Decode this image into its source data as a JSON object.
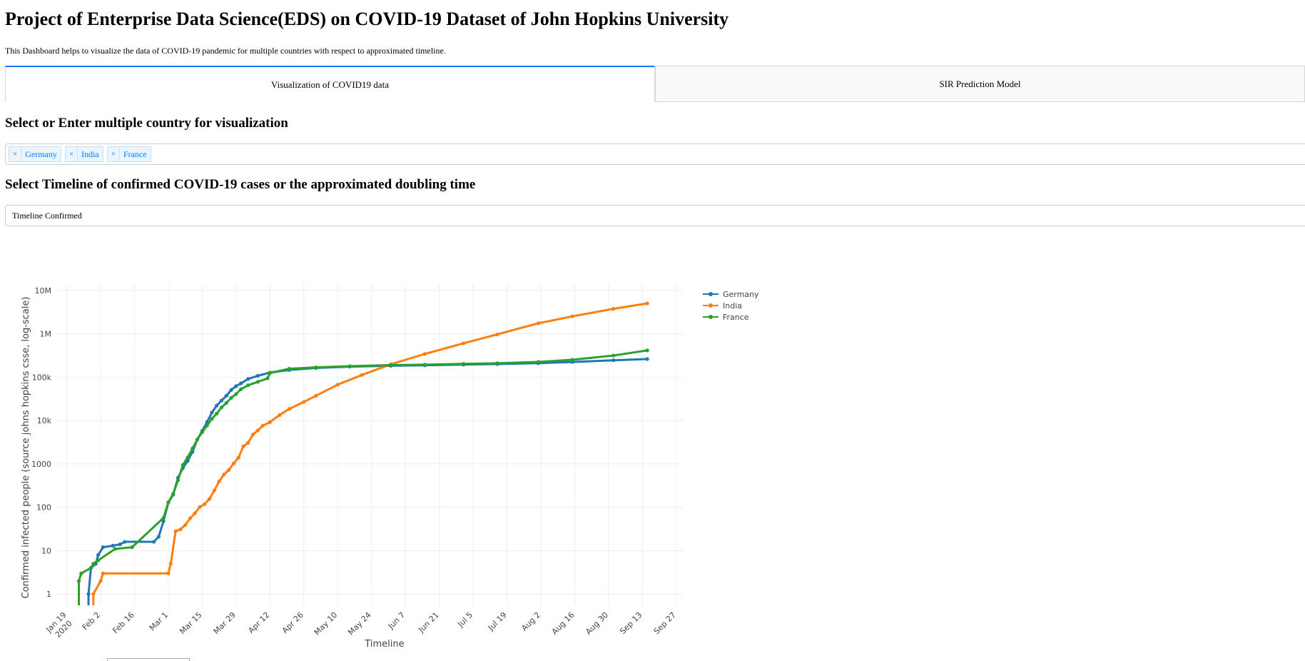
{
  "header": {
    "title": "Project of Enterprise Data Science(EDS) on COVID-19 Dataset of John Hopkins University",
    "intro": "This Dashboard helps to visualize the data of COVID-19 pandemic for multiple countries with respect to approximated timeline."
  },
  "tabs": [
    {
      "label": "Visualization of COVID19 data",
      "active": true
    },
    {
      "label": "SIR Prediction Model",
      "active": false
    }
  ],
  "country_select": {
    "heading": "Select or Enter multiple country for visualization",
    "remove_glyph": "×",
    "selected": [
      "Germany",
      "India",
      "France"
    ]
  },
  "timeline_select": {
    "heading": "Select Timeline of confirmed COVID-19 cases or the approximated doubling time",
    "value": "Timeline Confirmed"
  },
  "chart_data": {
    "type": "line",
    "xlabel": "Timeline",
    "ylabel": "Confirmed infected people (source johns hopkins csse, log-scale)",
    "y_scale": "log",
    "y_ticks": [
      {
        "value": 1,
        "label": "1"
      },
      {
        "value": 10,
        "label": "10"
      },
      {
        "value": 100,
        "label": "100"
      },
      {
        "value": 1000,
        "label": "1000"
      },
      {
        "value": 10000,
        "label": "10k"
      },
      {
        "value": 100000,
        "label": "100k"
      },
      {
        "value": 1000000,
        "label": "1M"
      },
      {
        "value": 10000000,
        "label": "10M"
      }
    ],
    "x_ticks": [
      {
        "date": "2020-01-19",
        "label": "Jan 19",
        "sub": "2020"
      },
      {
        "date": "2020-02-02",
        "label": "Feb 2"
      },
      {
        "date": "2020-02-16",
        "label": "Feb 16"
      },
      {
        "date": "2020-03-01",
        "label": "Mar 1"
      },
      {
        "date": "2020-03-15",
        "label": "Mar 15"
      },
      {
        "date": "2020-03-29",
        "label": "Mar 29"
      },
      {
        "date": "2020-04-12",
        "label": "Apr 12"
      },
      {
        "date": "2020-04-26",
        "label": "Apr 26"
      },
      {
        "date": "2020-05-10",
        "label": "May 10"
      },
      {
        "date": "2020-05-24",
        "label": "May 24"
      },
      {
        "date": "2020-06-07",
        "label": "Jun 7"
      },
      {
        "date": "2020-06-21",
        "label": "Jun 21"
      },
      {
        "date": "2020-07-05",
        "label": "Jul 5"
      },
      {
        "date": "2020-07-19",
        "label": "Jul 19"
      },
      {
        "date": "2020-08-02",
        "label": "Aug 2"
      },
      {
        "date": "2020-08-16",
        "label": "Aug 16"
      },
      {
        "date": "2020-08-30",
        "label": "Aug 30"
      },
      {
        "date": "2020-09-13",
        "label": "Sep 13"
      },
      {
        "date": "2020-09-27",
        "label": "Sep 27"
      }
    ],
    "x_range": [
      "2020-01-15",
      "2020-09-30"
    ],
    "y_range": [
      0.55,
      14000000
    ],
    "grid": true,
    "legend": "top-right",
    "series": [
      {
        "name": "Germany",
        "color": "#1f77b4",
        "points": [
          [
            "2020-01-28",
            1
          ],
          [
            "2020-01-29",
            4
          ],
          [
            "2020-01-31",
            5
          ],
          [
            "2020-02-01",
            8
          ],
          [
            "2020-02-03",
            12
          ],
          [
            "2020-02-07",
            13
          ],
          [
            "2020-02-10",
            14
          ],
          [
            "2020-02-12",
            16
          ],
          [
            "2020-02-24",
            16
          ],
          [
            "2020-02-26",
            21
          ],
          [
            "2020-02-28",
            48
          ],
          [
            "2020-03-01",
            130
          ],
          [
            "2020-03-03",
            196
          ],
          [
            "2020-03-05",
            482
          ],
          [
            "2020-03-07",
            800
          ],
          [
            "2020-03-09",
            1176
          ],
          [
            "2020-03-11",
            1908
          ],
          [
            "2020-03-13",
            3675
          ],
          [
            "2020-03-15",
            5795
          ],
          [
            "2020-03-17",
            9257
          ],
          [
            "2020-03-19",
            15320
          ],
          [
            "2020-03-21",
            22213
          ],
          [
            "2020-03-23",
            29056
          ],
          [
            "2020-03-25",
            37323
          ],
          [
            "2020-03-27",
            50871
          ],
          [
            "2020-03-29",
            62095
          ],
          [
            "2020-03-31",
            71808
          ],
          [
            "2020-04-03",
            91159
          ],
          [
            "2020-04-07",
            107663
          ],
          [
            "2020-04-12",
            127854
          ],
          [
            "2020-04-20",
            147065
          ],
          [
            "2020-05-01",
            163009
          ],
          [
            "2020-05-15",
            175233
          ],
          [
            "2020-06-01",
            183494
          ],
          [
            "2020-06-15",
            187764
          ],
          [
            "2020-07-01",
            195418
          ],
          [
            "2020-07-15",
            200890
          ],
          [
            "2020-08-01",
            210402
          ],
          [
            "2020-08-15",
            224488
          ],
          [
            "2020-09-01",
            245372
          ],
          [
            "2020-09-15",
            262000
          ]
        ]
      },
      {
        "name": "India",
        "color": "#ff7f0e",
        "points": [
          [
            "2020-01-30",
            1
          ],
          [
            "2020-02-02",
            2
          ],
          [
            "2020-02-03",
            3
          ],
          [
            "2020-03-01",
            3
          ],
          [
            "2020-03-02",
            5
          ],
          [
            "2020-03-04",
            28
          ],
          [
            "2020-03-06",
            31
          ],
          [
            "2020-03-08",
            39
          ],
          [
            "2020-03-10",
            56
          ],
          [
            "2020-03-12",
            73
          ],
          [
            "2020-03-14",
            102
          ],
          [
            "2020-03-16",
            119
          ],
          [
            "2020-03-18",
            156
          ],
          [
            "2020-03-20",
            244
          ],
          [
            "2020-03-22",
            396
          ],
          [
            "2020-03-24",
            571
          ],
          [
            "2020-03-26",
            727
          ],
          [
            "2020-03-28",
            1024
          ],
          [
            "2020-03-30",
            1397
          ],
          [
            "2020-04-01",
            2543
          ],
          [
            "2020-04-03",
            3082
          ],
          [
            "2020-04-05",
            4778
          ],
          [
            "2020-04-07",
            5916
          ],
          [
            "2020-04-09",
            7600
          ],
          [
            "2020-04-12",
            9205
          ],
          [
            "2020-04-16",
            13430
          ],
          [
            "2020-04-20",
            18539
          ],
          [
            "2020-04-26",
            26917
          ],
          [
            "2020-05-01",
            37257
          ],
          [
            "2020-05-10",
            67161
          ],
          [
            "2020-05-20",
            112359
          ],
          [
            "2020-06-01",
            198706
          ],
          [
            "2020-06-15",
            343091
          ],
          [
            "2020-07-01",
            604641
          ],
          [
            "2020-07-15",
            968876
          ],
          [
            "2020-08-01",
            1750723
          ],
          [
            "2020-08-15",
            2526192
          ],
          [
            "2020-09-01",
            3769523
          ],
          [
            "2020-09-15",
            5020359
          ]
        ]
      },
      {
        "name": "France",
        "color": "#2ca02c",
        "points": [
          [
            "2020-01-24",
            2
          ],
          [
            "2020-01-25",
            3
          ],
          [
            "2020-01-29",
            4
          ],
          [
            "2020-01-30",
            5
          ],
          [
            "2020-02-01",
            6
          ],
          [
            "2020-02-08",
            11
          ],
          [
            "2020-02-15",
            12
          ],
          [
            "2020-02-28",
            57
          ],
          [
            "2020-03-01",
            130
          ],
          [
            "2020-03-03",
            204
          ],
          [
            "2020-03-05",
            423
          ],
          [
            "2020-03-07",
            949
          ],
          [
            "2020-03-09",
            1412
          ],
          [
            "2020-03-11",
            2284
          ],
          [
            "2020-03-13",
            3667
          ],
          [
            "2020-03-15",
            5423
          ],
          [
            "2020-03-17",
            7699
          ],
          [
            "2020-03-19",
            10947
          ],
          [
            "2020-03-21",
            14459
          ],
          [
            "2020-03-23",
            20123
          ],
          [
            "2020-03-25",
            25600
          ],
          [
            "2020-03-27",
            33402
          ],
          [
            "2020-03-29",
            40708
          ],
          [
            "2020-03-31",
            52827
          ],
          [
            "2020-04-03",
            65202
          ],
          [
            "2020-04-07",
            78167
          ],
          [
            "2020-04-11",
            93790
          ],
          [
            "2020-04-12",
            125000
          ],
          [
            "2020-04-20",
            156480
          ],
          [
            "2020-05-01",
            168396
          ],
          [
            "2020-05-15",
            179506
          ],
          [
            "2020-06-01",
            189569
          ],
          [
            "2020-06-15",
            194153
          ],
          [
            "2020-07-01",
            202981
          ],
          [
            "2020-07-15",
            210000
          ],
          [
            "2020-08-01",
            225043
          ],
          [
            "2020-08-15",
            252000
          ],
          [
            "2020-09-01",
            315813
          ],
          [
            "2020-09-15",
            415000
          ]
        ]
      }
    ]
  }
}
